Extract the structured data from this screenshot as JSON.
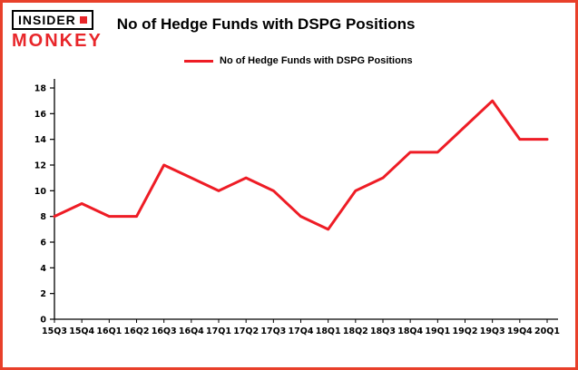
{
  "header": {
    "logo_line1": "INSIDER",
    "logo_line2": "MONKEY",
    "title": "No of Hedge Funds with DSPG Positions"
  },
  "legend": {
    "label": "No of Hedge Funds with DSPG Positions"
  },
  "colors": {
    "line": "#ee1c25",
    "frame_border": "#e8402a",
    "logo_red": "#e8262a",
    "axis": "#000000"
  },
  "chart_data": {
    "type": "line",
    "title": "No of Hedge Funds with DSPG Positions",
    "categories": [
      "15Q3",
      "15Q4",
      "16Q1",
      "16Q2",
      "16Q3",
      "16Q4",
      "17Q1",
      "17Q2",
      "17Q3",
      "17Q4",
      "18Q1",
      "18Q2",
      "18Q3",
      "18Q4",
      "19Q1",
      "19Q2",
      "19Q3",
      "19Q4",
      "20Q1"
    ],
    "values": [
      8,
      9,
      8,
      8,
      12,
      11,
      10,
      11,
      10,
      8,
      7,
      10,
      11,
      13,
      13,
      15,
      17,
      14,
      14
    ],
    "xlabel": "",
    "ylabel": "",
    "ylim": [
      0,
      18
    ],
    "yticks": [
      0,
      2,
      4,
      6,
      8,
      10,
      12,
      14,
      16,
      18
    ],
    "grid": false,
    "legend_position": "top-left",
    "line_color": "#ee1c25"
  }
}
